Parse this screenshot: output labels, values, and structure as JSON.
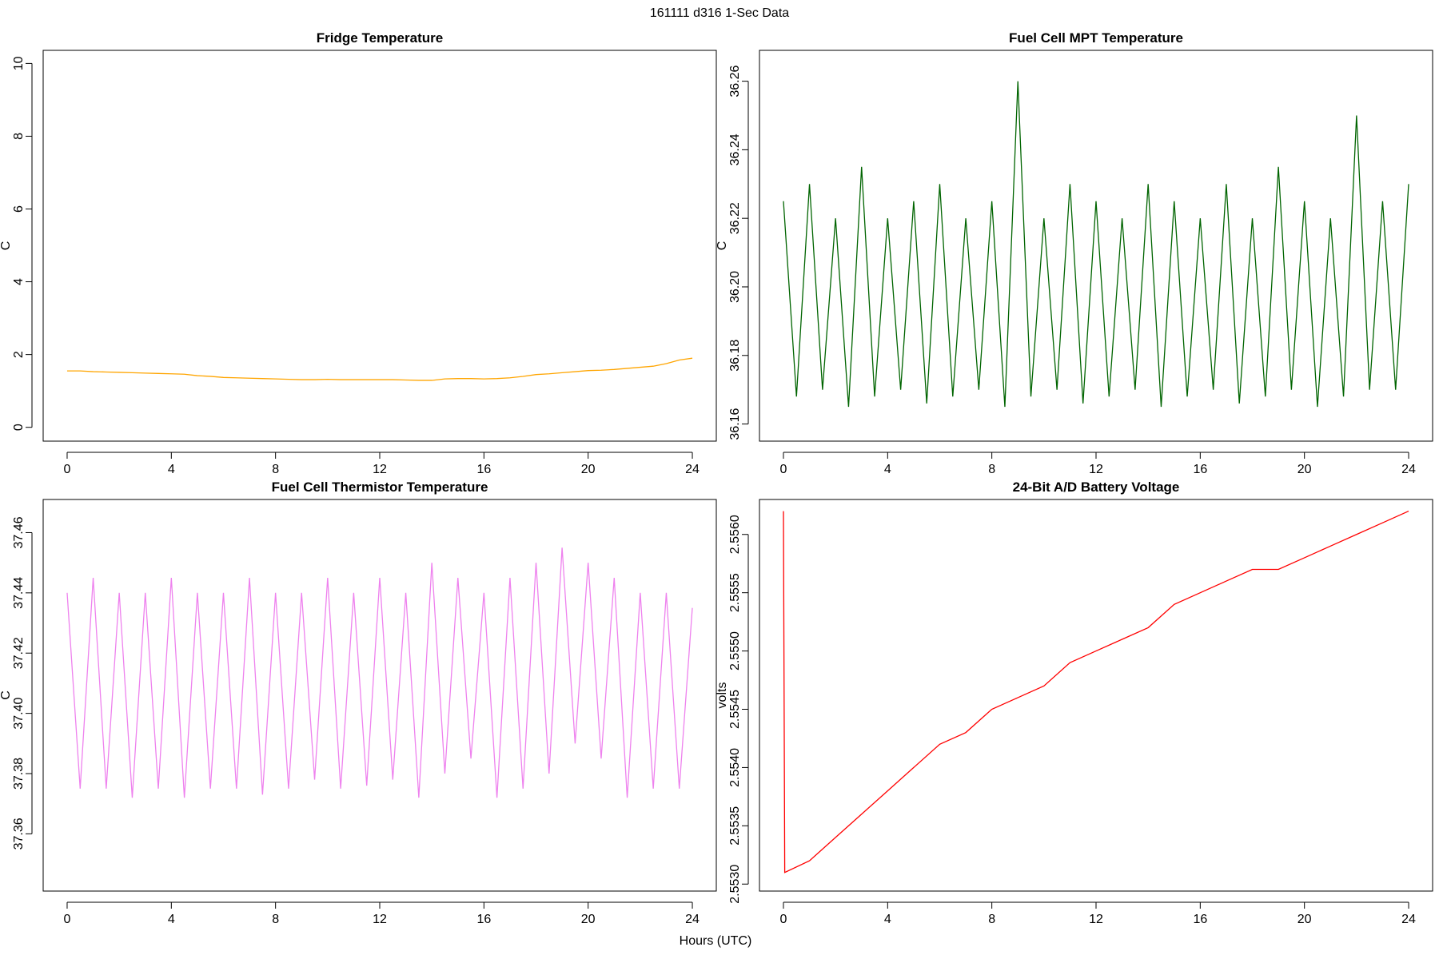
{
  "title": "161111   d316   1-Sec Data",
  "xlabel": "Hours (UTC)",
  "chart_data": [
    {
      "type": "line",
      "title": "Fridge Temperature",
      "ylabel": "C",
      "color": "#ffa500",
      "x": [
        0,
        0.5,
        1,
        1.5,
        2,
        2.5,
        3,
        3.5,
        4,
        4.5,
        5,
        5.5,
        6,
        6.5,
        7,
        7.5,
        8,
        8.5,
        9,
        9.5,
        10,
        10.5,
        11,
        11.5,
        12,
        12.5,
        13,
        13.5,
        14,
        14.5,
        15,
        15.5,
        16,
        16.5,
        17,
        17.5,
        18,
        18.5,
        19,
        19.5,
        20,
        20.5,
        21,
        21.5,
        22,
        22.5,
        23,
        23.5,
        24
      ],
      "values": [
        1.55,
        1.55,
        1.53,
        1.52,
        1.51,
        1.5,
        1.49,
        1.48,
        1.47,
        1.46,
        1.42,
        1.4,
        1.37,
        1.36,
        1.35,
        1.34,
        1.33,
        1.32,
        1.31,
        1.31,
        1.32,
        1.31,
        1.31,
        1.31,
        1.31,
        1.31,
        1.3,
        1.29,
        1.29,
        1.33,
        1.34,
        1.34,
        1.33,
        1.34,
        1.36,
        1.4,
        1.45,
        1.47,
        1.5,
        1.53,
        1.56,
        1.57,
        1.59,
        1.62,
        1.65,
        1.68,
        1.75,
        1.85,
        1.9
      ],
      "xlim": [
        -0.92,
        24.92
      ],
      "ylim": [
        -0.38,
        10.36
      ],
      "xticks": [
        0,
        4,
        8,
        12,
        16,
        20,
        24
      ],
      "yticks": [
        0,
        2,
        4,
        6,
        8,
        10
      ]
    },
    {
      "type": "line",
      "title": "Fuel Cell MPT Temperature",
      "ylabel": "C",
      "color": "#006400",
      "x": [
        0,
        0.5,
        1,
        1.5,
        2,
        2.5,
        3,
        3.5,
        4,
        4.5,
        5,
        5.5,
        6,
        6.5,
        7,
        7.5,
        8,
        8.5,
        9,
        9.5,
        10,
        10.5,
        11,
        11.5,
        12,
        12.5,
        13,
        13.5,
        14,
        14.5,
        15,
        15.5,
        16,
        16.5,
        17,
        17.5,
        18,
        18.5,
        19,
        19.5,
        20,
        20.5,
        21,
        21.5,
        22,
        22.5,
        23,
        23.5,
        24
      ],
      "values": [
        36.225,
        36.168,
        36.23,
        36.17,
        36.22,
        36.165,
        36.235,
        36.168,
        36.22,
        36.17,
        36.225,
        36.166,
        36.23,
        36.168,
        36.22,
        36.17,
        36.225,
        36.165,
        36.26,
        36.168,
        36.22,
        36.17,
        36.23,
        36.166,
        36.225,
        36.168,
        36.22,
        36.17,
        36.23,
        36.165,
        36.225,
        36.168,
        36.22,
        36.17,
        36.23,
        36.166,
        36.22,
        36.168,
        36.235,
        36.17,
        36.225,
        36.165,
        36.22,
        36.168,
        36.25,
        36.17,
        36.225,
        36.17,
        36.23
      ],
      "xlim": [
        -0.92,
        24.92
      ],
      "ylim": [
        36.155,
        36.269
      ],
      "xticks": [
        0,
        4,
        8,
        12,
        16,
        20,
        24
      ],
      "yticks": [
        {
          "value": 36.16,
          "label": "36.16"
        },
        {
          "value": 36.18,
          "label": "36.18"
        },
        {
          "value": 36.2,
          "label": "36.20"
        },
        {
          "value": 36.22,
          "label": "36.22"
        },
        {
          "value": 36.24,
          "label": "36.24"
        },
        {
          "value": 36.26,
          "label": "36.26"
        }
      ]
    },
    {
      "type": "line",
      "title": "Fuel Cell Thermistor Temperature",
      "ylabel": "C",
      "color": "#ee82ee",
      "x": [
        0,
        0.5,
        1,
        1.5,
        2,
        2.5,
        3,
        3.5,
        4,
        4.5,
        5,
        5.5,
        6,
        6.5,
        7,
        7.5,
        8,
        8.5,
        9,
        9.5,
        10,
        10.5,
        11,
        11.5,
        12,
        12.5,
        13,
        13.5,
        14,
        14.5,
        15,
        15.5,
        16,
        16.5,
        17,
        17.5,
        18,
        18.5,
        19,
        19.5,
        20,
        20.5,
        21,
        21.5,
        22,
        22.5,
        23,
        23.5,
        24
      ],
      "values": [
        37.44,
        37.375,
        37.445,
        37.375,
        37.44,
        37.372,
        37.44,
        37.375,
        37.445,
        37.372,
        37.44,
        37.375,
        37.44,
        37.375,
        37.445,
        37.373,
        37.44,
        37.375,
        37.44,
        37.378,
        37.445,
        37.375,
        37.44,
        37.376,
        37.445,
        37.378,
        37.44,
        37.372,
        37.45,
        37.38,
        37.445,
        37.385,
        37.44,
        37.372,
        37.445,
        37.375,
        37.45,
        37.38,
        37.455,
        37.39,
        37.45,
        37.385,
        37.445,
        37.372,
        37.44,
        37.375,
        37.44,
        37.375,
        37.435
      ],
      "xlim": [
        -0.92,
        24.92
      ],
      "ylim": [
        37.341,
        37.471
      ],
      "xticks": [
        0,
        4,
        8,
        12,
        16,
        20,
        24
      ],
      "yticks": [
        {
          "value": 37.36,
          "label": "37.36"
        },
        {
          "value": 37.38,
          "label": "37.38"
        },
        {
          "value": 37.4,
          "label": "37.40"
        },
        {
          "value": 37.42,
          "label": "37.42"
        },
        {
          "value": 37.44,
          "label": "37.44"
        },
        {
          "value": 37.46,
          "label": "37.46"
        }
      ]
    },
    {
      "type": "line",
      "title": "24-Bit A/D Battery Voltage",
      "ylabel": "volts",
      "color": "#ff0000",
      "x": [
        0,
        0.05,
        1,
        2,
        3,
        4,
        5,
        6,
        7,
        8,
        9,
        10,
        11,
        12,
        13,
        14,
        15,
        16,
        17,
        18,
        19,
        20,
        21,
        22,
        23,
        24
      ],
      "values": [
        2.5562,
        2.5531,
        2.5532,
        2.5534,
        2.5536,
        2.5538,
        2.554,
        2.5542,
        2.5543,
        2.5545,
        2.5546,
        2.5547,
        2.5549,
        2.555,
        2.5551,
        2.5552,
        2.5554,
        2.5555,
        2.5556,
        2.5557,
        2.5557,
        2.5558,
        2.5559,
        2.556,
        2.5561,
        2.5562
      ],
      "xlim": [
        -0.92,
        24.92
      ],
      "ylim": [
        2.55294,
        2.5563
      ],
      "xticks": [
        0,
        4,
        8,
        12,
        16,
        20,
        24
      ],
      "yticks": [
        {
          "value": 2.553,
          "label": "2.5530"
        },
        {
          "value": 2.5535,
          "label": "2.5535"
        },
        {
          "value": 2.554,
          "label": "2.5540"
        },
        {
          "value": 2.5545,
          "label": "2.5545"
        },
        {
          "value": 2.555,
          "label": "2.5550"
        },
        {
          "value": 2.5555,
          "label": "2.5555"
        },
        {
          "value": 2.556,
          "label": "2.5560"
        }
      ]
    }
  ]
}
